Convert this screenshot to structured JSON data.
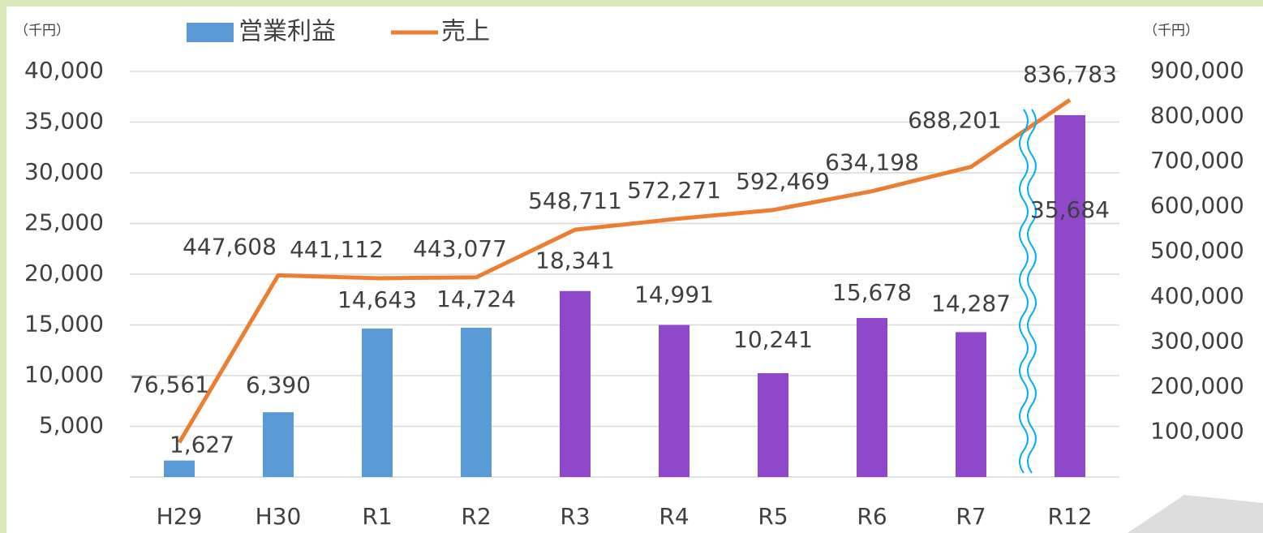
{
  "chart_data": {
    "type": "bar",
    "categories": [
      "H29",
      "H30",
      "R1",
      "R2",
      "R3",
      "R4",
      "R5",
      "R6",
      "R7",
      "R12"
    ],
    "y_unit": "（千円）",
    "y2_unit": "（千円）",
    "series": [
      {
        "name": "営業利益",
        "type": "bar",
        "color": "#5b9bd5",
        "bar_colors": [
          "#5b9bd5",
          "#5b9bd5",
          "#5b9bd5",
          "#5b9bd5",
          "#8e48c9",
          "#8e48c9",
          "#8e48c9",
          "#8e48c9",
          "#8e48c9",
          "#8e48c9"
        ],
        "values": [
          1627,
          6390,
          14643,
          14724,
          18341,
          14991,
          10241,
          15678,
          14287,
          35684
        ],
        "value_labels": [
          "1,627",
          "6,390",
          "14,643",
          "14,724",
          "18,341",
          "14,991",
          "10,241",
          "15,678",
          "14,287",
          "35,684"
        ]
      },
      {
        "name": "売上",
        "type": "line",
        "axis": "y2",
        "color": "#ed7d31",
        "values": [
          76561,
          447608,
          441112,
          443077,
          548711,
          572271,
          592469,
          634198,
          688201,
          836783
        ],
        "value_labels": [
          "76,561",
          "447,608",
          "441,112",
          "443,077",
          "548,711",
          "572,271",
          "592,469",
          "634,198",
          "688,201",
          "836,783"
        ]
      }
    ],
    "ylim": [
      0,
      40000
    ],
    "yticks": [
      {
        "value": 5000,
        "label": "5,000"
      },
      {
        "value": 10000,
        "label": "10,000"
      },
      {
        "value": 15000,
        "label": "15,000"
      },
      {
        "value": 20000,
        "label": "20,000"
      },
      {
        "value": 25000,
        "label": "25,000"
      },
      {
        "value": 30000,
        "label": "30,000"
      },
      {
        "value": 35000,
        "label": "35,000"
      },
      {
        "value": 40000,
        "label": "40,000"
      }
    ],
    "y2lim": [
      0,
      900000
    ],
    "y2ticks": [
      {
        "value": 100000,
        "label": "100,000"
      },
      {
        "value": 200000,
        "label": "200,000"
      },
      {
        "value": 300000,
        "label": "300,000"
      },
      {
        "value": 400000,
        "label": "400,000"
      },
      {
        "value": 500000,
        "label": "500,000"
      },
      {
        "value": 600000,
        "label": "600,000"
      },
      {
        "value": 700000,
        "label": "700,000"
      },
      {
        "value": 800000,
        "label": "800,000"
      },
      {
        "value": 900000,
        "label": "900,000"
      }
    ],
    "grid": true
  }
}
